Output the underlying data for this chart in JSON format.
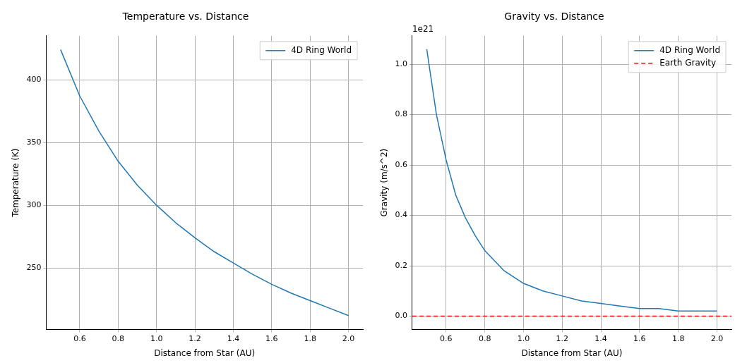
{
  "chart_data": [
    {
      "type": "line",
      "title": "Temperature vs. Distance",
      "xlabel": "Distance from Star (AU)",
      "ylabel": "Temperature (K)",
      "x": [
        0.5,
        0.6,
        0.7,
        0.8,
        0.9,
        1.0,
        1.1,
        1.2,
        1.3,
        1.4,
        1.5,
        1.6,
        1.7,
        1.8,
        1.9,
        2.0
      ],
      "series": [
        {
          "name": "4D Ring World",
          "color": "#1f77b4",
          "values": [
            424,
            387,
            359,
            335,
            316,
            300,
            286,
            274,
            263,
            254,
            245,
            237,
            230,
            224,
            218,
            212
          ]
        }
      ],
      "xlim": [
        0.425,
        2.075
      ],
      "xticks": [
        {
          "value": 0.6,
          "label": "0.6"
        },
        {
          "value": 0.8,
          "label": "0.8"
        },
        {
          "value": 1.0,
          "label": "1.0"
        },
        {
          "value": 1.2,
          "label": "1.2"
        },
        {
          "value": 1.4,
          "label": "1.4"
        },
        {
          "value": 1.6,
          "label": "1.6"
        },
        {
          "value": 1.8,
          "label": "1.8"
        },
        {
          "value": 2.0,
          "label": "2.0"
        }
      ],
      "ylim": [
        201,
        435
      ],
      "yticks": [
        250,
        300,
        350,
        400
      ],
      "grid": true,
      "legend": "top right",
      "line_style": "solid"
    },
    {
      "type": "line",
      "title": "Gravity vs. Distance",
      "xlabel": "Distance from Star (AU)",
      "ylabel": "Gravity (m/s^2)",
      "annotations": [
        "1e21"
      ],
      "x": [
        0.5,
        0.55,
        0.6,
        0.65,
        0.7,
        0.75,
        0.8,
        0.9,
        1.0,
        1.1,
        1.2,
        1.3,
        1.4,
        1.5,
        1.6,
        1.7,
        1.8,
        1.9,
        2.0
      ],
      "series": [
        {
          "name": "4D Ring World",
          "color": "#1f77b4",
          "values": [
            1.06,
            0.8,
            0.62,
            0.48,
            0.39,
            0.32,
            0.26,
            0.18,
            0.13,
            0.1,
            0.08,
            0.06,
            0.05,
            0.04,
            0.03,
            0.03,
            0.02,
            0.02,
            0.02
          ]
        }
      ],
      "ref_lines": [
        {
          "axis": "y",
          "value": 0,
          "label": "Earth Gravity",
          "color": "#ff0000",
          "line_style": "dashed"
        }
      ],
      "xlim": [
        0.425,
        2.075
      ],
      "xticks": [
        {
          "value": 0.6,
          "label": "0.6"
        },
        {
          "value": 0.8,
          "label": "0.8"
        },
        {
          "value": 1.0,
          "label": "1.0"
        },
        {
          "value": 1.2,
          "label": "1.2"
        },
        {
          "value": 1.4,
          "label": "1.4"
        },
        {
          "value": 1.6,
          "label": "1.6"
        },
        {
          "value": 1.8,
          "label": "1.8"
        },
        {
          "value": 2.0,
          "label": "2.0"
        }
      ],
      "ylim": [
        -0.053,
        1.113
      ],
      "yticks": [
        {
          "value": 0,
          "label": "0.0"
        },
        {
          "value": 0.2,
          "label": "0.2"
        },
        {
          "value": 0.4,
          "label": "0.4"
        },
        {
          "value": 0.6,
          "label": "0.6"
        },
        {
          "value": 0.8,
          "label": "0.8"
        },
        {
          "value": 1.0,
          "label": "1.0"
        }
      ],
      "grid": true,
      "legend": "top right",
      "line_style": "solid"
    }
  ]
}
